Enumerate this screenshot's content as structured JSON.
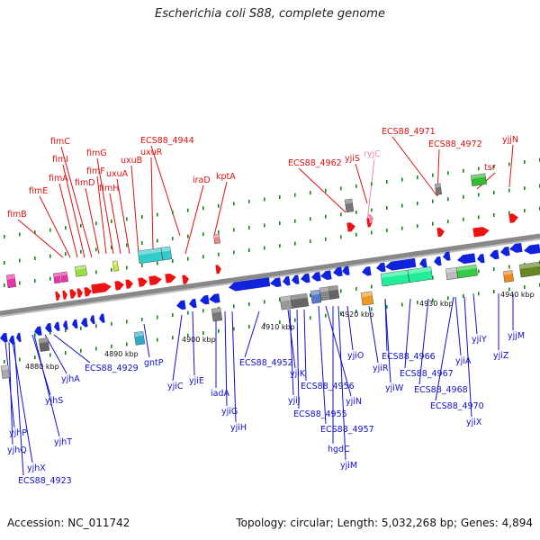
{
  "title": "Escherichia coli S88, complete genome",
  "footer": {
    "accession": "Accession: NC_011742",
    "summary": "Topology: circular; Length: 5,032,268 bp; Genes: 4,894"
  },
  "colors": {
    "forward_label": "#dd1111",
    "forward_pseudo_label": "#ee88aa",
    "reverse_label": "#1111cc",
    "backbone": "#888888",
    "tick": "#118811"
  },
  "kbp_ticks": [
    "4880 kbp",
    "4890 kbp",
    "4900 kbp",
    "4910 kbp",
    "4920 kbp",
    "4930 kbp",
    "4940 kbp"
  ],
  "top_labels": [
    "fimB",
    "fimE",
    "fimA",
    "fimI",
    "fimC",
    "fimD",
    "fimF",
    "fimG",
    "fimH",
    "uxuA",
    "uxuB",
    "uxuR",
    "ECS88_4944",
    "iraD",
    "kptA",
    "ECS88_4962",
    "yjiS",
    "ryjC",
    "ECS88_4971",
    "ECS88_4972",
    "tsr",
    "yjjN"
  ],
  "bottom_labels": [
    "yjhP",
    "yjhQ",
    "yjhX",
    "ECS88_4923",
    "yjhS",
    "yjhT",
    "yjhA",
    "ECS88_4929",
    "gntP",
    "yjiC",
    "yjiE",
    "iadA",
    "yjiG",
    "yjiH",
    "ECS88_4952",
    "yjiK",
    "yjiJ",
    "ECS88_4956",
    "ECS88_4955",
    "yjiN",
    "ECS88_4957",
    "hgdC",
    "yjiM",
    "yjiO",
    "yjiR",
    "yjiW",
    "ECS88_4966",
    "ECS88_4967",
    "ECS88_4968",
    "yjiA",
    "ECS88_4970",
    "yjiX",
    "yjiY",
    "yjiZ",
    "yjjM"
  ]
}
